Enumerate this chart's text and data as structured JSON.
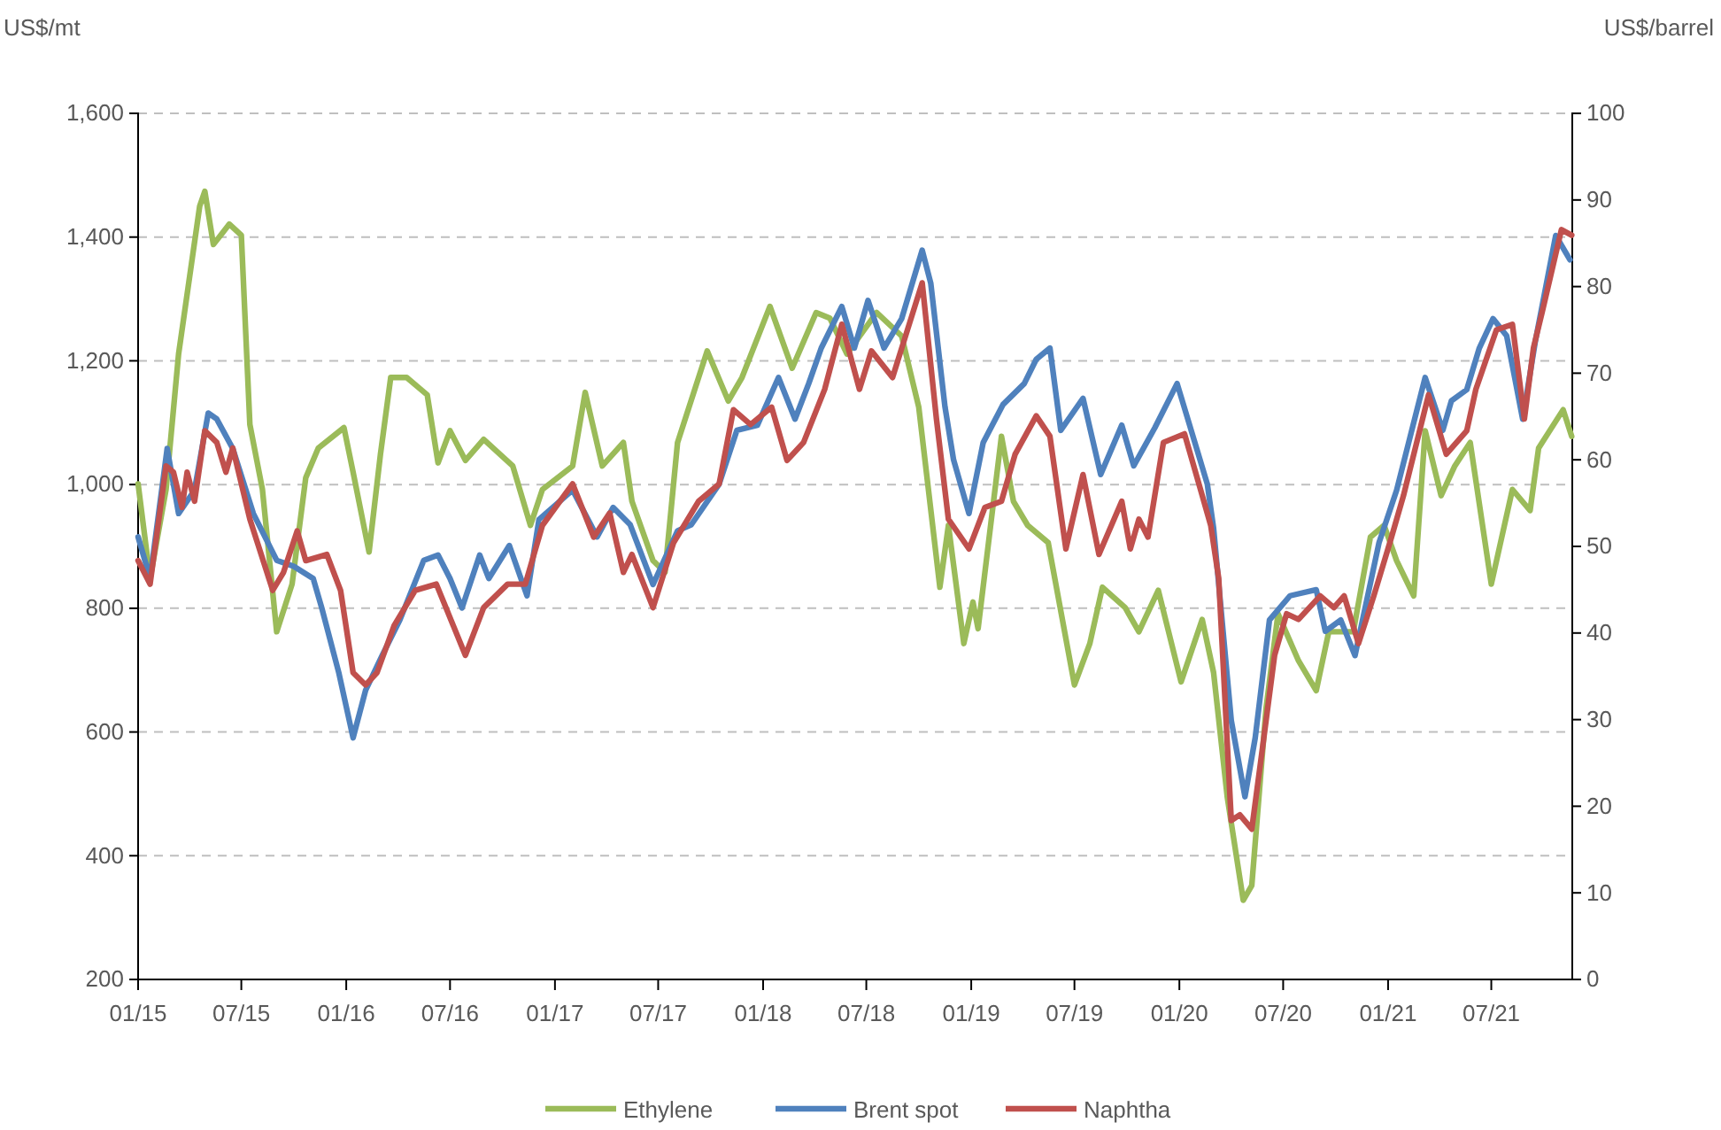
{
  "chart_data": {
    "type": "line",
    "ylabel": "US$/mt",
    "y2label": "US$/barrel",
    "grid": "y",
    "legend": "bottom",
    "line_style": "solid",
    "marker": "none",
    "xlim": [
      "2015-01-01",
      "2021-11-20"
    ],
    "xticks": [
      {
        "value": "2015-01-01",
        "label": "01/15"
      },
      {
        "value": "2015-07-01",
        "label": "07/15"
      },
      {
        "value": "2016-01-01",
        "label": "01/16"
      },
      {
        "value": "2016-07-01",
        "label": "07/16"
      },
      {
        "value": "2017-01-01",
        "label": "01/17"
      },
      {
        "value": "2017-07-01",
        "label": "07/17"
      },
      {
        "value": "2018-01-01",
        "label": "01/18"
      },
      {
        "value": "2018-07-01",
        "label": "07/18"
      },
      {
        "value": "2019-01-01",
        "label": "01/19"
      },
      {
        "value": "2019-07-01",
        "label": "07/19"
      },
      {
        "value": "2020-01-01",
        "label": "01/20"
      },
      {
        "value": "2020-07-01",
        "label": "07/20"
      },
      {
        "value": "2021-01-01",
        "label": "01/21"
      },
      {
        "value": "2021-07-01",
        "label": "07/21"
      }
    ],
    "ylim": [
      200,
      1600
    ],
    "yticks": [
      200,
      400,
      600,
      800,
      {
        "value": 1000,
        "label": "1,000"
      },
      {
        "value": 1200,
        "label": "1,200"
      },
      {
        "value": 1400,
        "label": "1,400"
      },
      {
        "value": 1600,
        "label": "1,600"
      }
    ],
    "y2lim": [
      0,
      100
    ],
    "y2ticks": [
      0,
      10,
      20,
      30,
      40,
      50,
      60,
      70,
      80,
      90,
      100
    ],
    "series": [
      {
        "name": "Ethylene",
        "color": "#9bbb59",
        "x": [
          "2015-01-01",
          "2015-01-22",
          "2015-02-19",
          "2015-03-13",
          "2015-04-19",
          "2015-04-28",
          "2015-05-13",
          "2015-06-10",
          "2015-07-01",
          "2015-07-16",
          "2015-08-07",
          "2015-09-01",
          "2015-09-28",
          "2015-10-22",
          "2015-11-13",
          "2015-12-28",
          "2016-01-13",
          "2016-02-10",
          "2016-03-01",
          "2016-03-19",
          "2016-04-16",
          "2016-05-22",
          "2016-06-10",
          "2016-07-01",
          "2016-07-28",
          "2016-08-29",
          "2016-10-19",
          "2016-11-19",
          "2016-12-10",
          "2017-02-01",
          "2017-02-23",
          "2017-03-25",
          "2017-05-01",
          "2017-05-16",
          "2017-06-22",
          "2017-07-13",
          "2017-08-04",
          "2017-09-25",
          "2017-11-01",
          "2017-11-25",
          "2018-01-13",
          "2018-02-21",
          "2018-04-04",
          "2018-04-28",
          "2018-05-28",
          "2018-07-19",
          "2018-09-01",
          "2018-10-01",
          "2018-11-07",
          "2018-11-22",
          "2018-12-19",
          "2019-01-04",
          "2019-01-13",
          "2019-02-23",
          "2019-03-16",
          "2019-04-10",
          "2019-05-16",
          "2019-07-01",
          "2019-07-28",
          "2019-08-19",
          "2019-09-28",
          "2019-10-22",
          "2019-11-25",
          "2020-01-04",
          "2020-02-10",
          "2020-03-01",
          "2020-03-25",
          "2020-04-22",
          "2020-05-07",
          "2020-06-01",
          "2020-06-22",
          "2020-07-28",
          "2020-08-28",
          "2020-09-19",
          "2020-11-01",
          "2020-12-01",
          "2020-12-25",
          "2021-01-16",
          "2021-02-15",
          "2021-03-07",
          "2021-04-04",
          "2021-04-28",
          "2021-05-25",
          "2021-07-01",
          "2021-08-07",
          "2021-09-07",
          "2021-09-22",
          "2021-11-04",
          "2021-11-19"
        ],
        "values": [
          1001,
          848,
          992,
          1211,
          1450,
          1474,
          1388,
          1421,
          1403,
          1097,
          992,
          762,
          839,
          1011,
          1059,
          1092,
          1020,
          891,
          1049,
          1173,
          1173,
          1145,
          1035,
          1087,
          1039,
          1073,
          1030,
          934,
          992,
          1030,
          1149,
          1030,
          1068,
          973,
          877,
          858,
          1068,
          1216,
          1135,
          1173,
          1288,
          1188,
          1278,
          1269,
          1211,
          1278,
          1240,
          1125,
          834,
          934,
          743,
          810,
          767,
          1078,
          973,
          934,
          906,
          676,
          743,
          834,
          801,
          762,
          829,
          681,
          782,
          696,
          495,
          328,
          352,
          638,
          791,
          715,
          667,
          762,
          762,
          915,
          934,
          877,
          820,
          1087,
          982,
          1030,
          1068,
          839,
          992,
          958,
          1059,
          1121,
          1078
        ]
      },
      {
        "name": "Brent spot",
        "color": "#4f81bd",
        "axis": "y2",
        "x": [
          "2015-01-01",
          "2015-01-22",
          "2015-02-21",
          "2015-03-13",
          "2015-04-10",
          "2015-05-04",
          "2015-05-19",
          "2015-06-16",
          "2015-07-22",
          "2015-09-01",
          "2015-10-01",
          "2015-11-04",
          "2015-11-19",
          "2015-12-19",
          "2016-01-13",
          "2016-02-04",
          "2016-03-04",
          "2016-04-04",
          "2016-05-16",
          "2016-06-10",
          "2016-07-01",
          "2016-07-22",
          "2016-08-22",
          "2016-09-07",
          "2016-10-13",
          "2016-11-13",
          "2016-12-04",
          "2017-02-01",
          "2017-03-16",
          "2017-04-13",
          "2017-05-13",
          "2017-06-22",
          "2017-08-04",
          "2017-08-28",
          "2017-10-16",
          "2017-11-16",
          "2017-12-22",
          "2018-01-28",
          "2018-02-26",
          "2018-03-22",
          "2018-04-13",
          "2018-05-19",
          "2018-06-10",
          "2018-07-04",
          "2018-08-01",
          "2018-09-01",
          "2018-10-07",
          "2018-10-22",
          "2018-11-16",
          "2018-12-01",
          "2018-12-28",
          "2019-01-22",
          "2019-02-26",
          "2019-04-04",
          "2019-04-25",
          "2019-05-19",
          "2019-06-07",
          "2019-07-16",
          "2019-08-16",
          "2019-09-22",
          "2019-10-13",
          "2019-11-19",
          "2019-12-28",
          "2020-01-19",
          "2020-02-19",
          "2020-03-01",
          "2020-04-01",
          "2020-04-25",
          "2020-05-13",
          "2020-06-07",
          "2020-07-13",
          "2020-08-28",
          "2020-09-13",
          "2020-10-10",
          "2020-11-04",
          "2020-12-16",
          "2021-01-16",
          "2021-03-07",
          "2021-04-07",
          "2021-04-22",
          "2021-05-19",
          "2021-06-10",
          "2021-07-04",
          "2021-07-28",
          "2021-08-25",
          "2021-09-16",
          "2021-10-22",
          "2021-11-16"
        ],
        "values": [
          51.1,
          46.3,
          61.3,
          53.8,
          56.5,
          65.4,
          64.7,
          61.3,
          53.8,
          48.4,
          47.7,
          46.3,
          42.9,
          35.4,
          27.9,
          33.4,
          37.4,
          41.5,
          48.4,
          49.0,
          46.3,
          42.9,
          49.0,
          46.3,
          50.1,
          44.3,
          53.1,
          56.5,
          51.1,
          54.5,
          52.5,
          45.6,
          51.8,
          52.5,
          57.2,
          63.4,
          64.0,
          69.5,
          64.7,
          68.8,
          72.9,
          77.7,
          72.9,
          78.4,
          72.9,
          76.3,
          84.2,
          80.4,
          66.1,
          60.0,
          53.8,
          62.0,
          66.4,
          68.8,
          71.6,
          72.9,
          63.4,
          67.1,
          58.3,
          64.0,
          59.3,
          63.7,
          68.8,
          64.0,
          57.2,
          52.1,
          29.9,
          21.1,
          27.9,
          41.5,
          44.3,
          45.0,
          40.2,
          41.5,
          37.4,
          50.4,
          56.5,
          69.5,
          63.4,
          66.8,
          68.1,
          72.9,
          76.3,
          74.3,
          64.7,
          73.6,
          85.9,
          83.1
        ]
      },
      {
        "name": "Naphtha",
        "color": "#c0504d",
        "x": [
          "2015-01-01",
          "2015-01-22",
          "2015-02-19",
          "2015-03-04",
          "2015-03-19",
          "2015-03-28",
          "2015-04-10",
          "2015-04-28",
          "2015-05-19",
          "2015-06-04",
          "2015-06-16",
          "2015-07-16",
          "2015-08-25",
          "2015-09-13",
          "2015-10-07",
          "2015-10-22",
          "2015-11-28",
          "2015-12-22",
          "2016-01-13",
          "2016-02-04",
          "2016-02-24",
          "2016-03-25",
          "2016-05-01",
          "2016-06-07",
          "2016-07-28",
          "2016-08-29",
          "2016-10-10",
          "2016-11-10",
          "2016-12-10",
          "2017-02-01",
          "2017-03-10",
          "2017-04-07",
          "2017-05-01",
          "2017-05-16",
          "2017-06-22",
          "2017-07-28",
          "2017-09-10",
          "2017-10-16",
          "2017-11-10",
          "2017-12-10",
          "2018-01-16",
          "2018-02-12",
          "2018-03-13",
          "2018-04-19",
          "2018-05-19",
          "2018-06-19",
          "2018-07-10",
          "2018-08-16",
          "2018-10-07",
          "2018-11-01",
          "2018-11-22",
          "2018-12-28",
          "2019-01-25",
          "2019-02-23",
          "2019-03-19",
          "2019-04-25",
          "2019-05-19",
          "2019-06-16",
          "2019-07-16",
          "2019-08-13",
          "2019-09-22",
          "2019-10-07",
          "2019-10-22",
          "2019-11-07",
          "2019-12-04",
          "2020-01-10",
          "2020-02-07",
          "2020-02-25",
          "2020-03-10",
          "2020-04-01",
          "2020-04-16",
          "2020-05-07",
          "2020-05-28",
          "2020-06-16",
          "2020-07-07",
          "2020-07-28",
          "2020-09-04",
          "2020-09-28",
          "2020-10-16",
          "2020-11-10",
          "2020-12-07",
          "2021-01-07",
          "2021-01-28",
          "2021-03-13",
          "2021-04-13",
          "2021-05-19",
          "2021-06-04",
          "2021-07-10",
          "2021-08-07",
          "2021-08-28",
          "2021-09-13",
          "2021-09-28",
          "2021-11-01",
          "2021-11-19"
        ],
        "values": [
          877,
          839,
          1030,
          1020,
          963,
          1020,
          973,
          1087,
          1068,
          1020,
          1059,
          944,
          829,
          858,
          925,
          877,
          887,
          829,
          696,
          676,
          696,
          772,
          829,
          839,
          724,
          801,
          839,
          839,
          934,
          1001,
          915,
          954,
          858,
          887,
          801,
          906,
          973,
          1001,
          1121,
          1097,
          1125,
          1039,
          1068,
          1154,
          1259,
          1154,
          1216,
          1173,
          1326,
          1106,
          944,
          896,
          963,
          973,
          1049,
          1111,
          1078,
          896,
          1016,
          887,
          973,
          896,
          944,
          915,
          1068,
          1082,
          992,
          934,
          848,
          457,
          466,
          443,
          590,
          724,
          791,
          782,
          820,
          801,
          820,
          743,
          820,
          915,
          982,
          1145,
          1049,
          1087,
          1154,
          1250,
          1259,
          1106,
          1221,
          1278,
          1412,
          1403
        ]
      }
    ]
  }
}
